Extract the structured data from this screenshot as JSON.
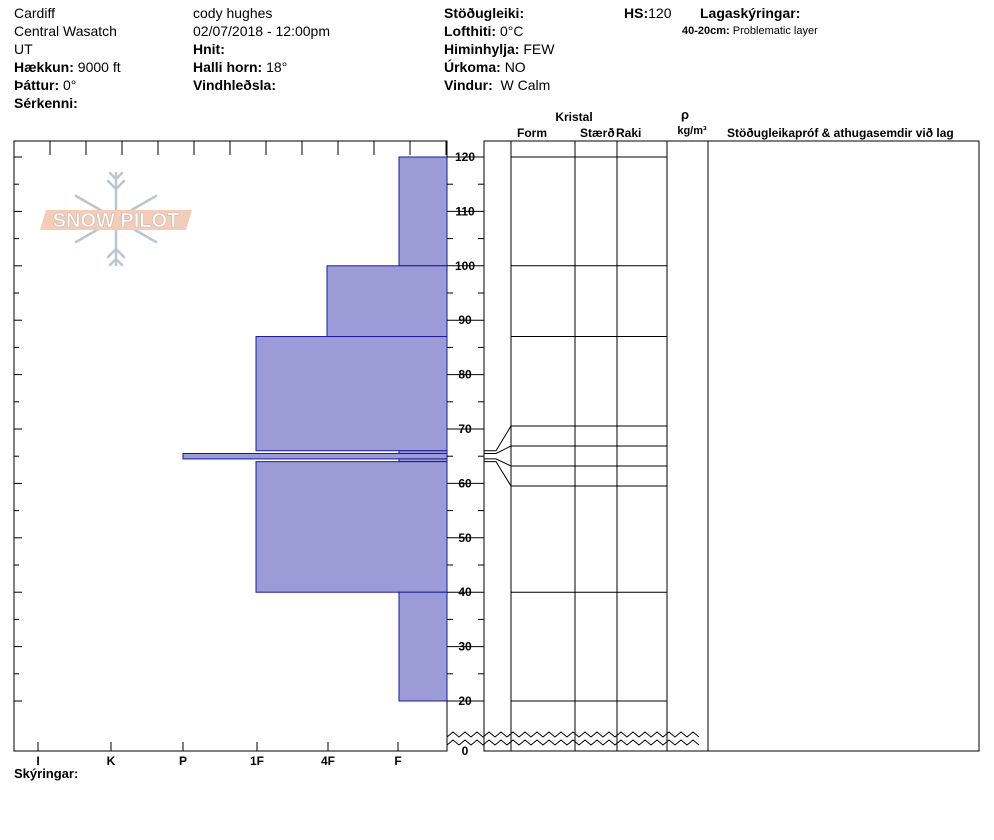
{
  "header": {
    "col1": {
      "line1": "Cardiff",
      "line2": "Central Wasatch",
      "line3": "UT",
      "elevation_label": "Hækkun:",
      "elevation_value": "9000 ft",
      "aspect_label": "Þáttur:",
      "aspect_value": "0°",
      "special_label": "Sérkenni:"
    },
    "col2": {
      "observer": "cody hughes",
      "datetime": "02/07/2018 - 12:00pm",
      "coords_label": "Hnit:",
      "slope_label": "Halli horn:",
      "slope_value": "18°",
      "wind_loading_label": "Vindhleðsla:"
    },
    "col3": {
      "stability_label": "Stöðugleiki:",
      "airtemp_label": "Lofthiti:",
      "airtemp_value": "0°C",
      "sky_label": "Himinhylja:",
      "sky_value": "FEW",
      "precip_label": "Úrkoma:",
      "precip_value": "NO",
      "wind_label": "Vindur:",
      "wind_value": "W Calm"
    },
    "hs_label": "HS:",
    "hs_value": "120",
    "legend_title": "Lagaskýringar:",
    "legend_range": "40-20cm:",
    "legend_text": "Problematic layer"
  },
  "logo_text": "SNOW PILOT",
  "table_headers": {
    "kristal": "Kristal",
    "form": "Form",
    "size": "Stærð",
    "moisture": "Raki",
    "rho": "ρ",
    "density_unit": "kg/m³",
    "comments": "Stöðugleikapróf & athugasemdir við lag"
  },
  "footer_label": "Skýringar:",
  "colors": {
    "fill": "#9b9bd7",
    "stroke": "#1a1a9a"
  },
  "chart_data": {
    "type": "bar",
    "orientation": "horizontal",
    "ylabel": "",
    "ylim": [
      0,
      120
    ],
    "y_ticks": [
      0,
      20,
      30,
      40,
      50,
      60,
      70,
      80,
      90,
      100,
      110,
      120
    ],
    "hardness_ticks": [
      "I",
      "K",
      "P",
      "1F",
      "4F",
      "F"
    ],
    "layers": [
      {
        "top": 120,
        "bottom": 100,
        "hardness": "F"
      },
      {
        "top": 100,
        "bottom": 87,
        "hardness": "4F"
      },
      {
        "top": 87,
        "bottom": 66,
        "hardness": "1F"
      },
      {
        "top": 66,
        "bottom": 65.5,
        "hardness": "F"
      },
      {
        "top": 65.5,
        "bottom": 64.5,
        "hardness": "P"
      },
      {
        "top": 64.5,
        "bottom": 64,
        "hardness": "F"
      },
      {
        "top": 64,
        "bottom": 40,
        "hardness": "1F"
      },
      {
        "top": 40,
        "bottom": 20,
        "hardness": "F"
      }
    ]
  }
}
